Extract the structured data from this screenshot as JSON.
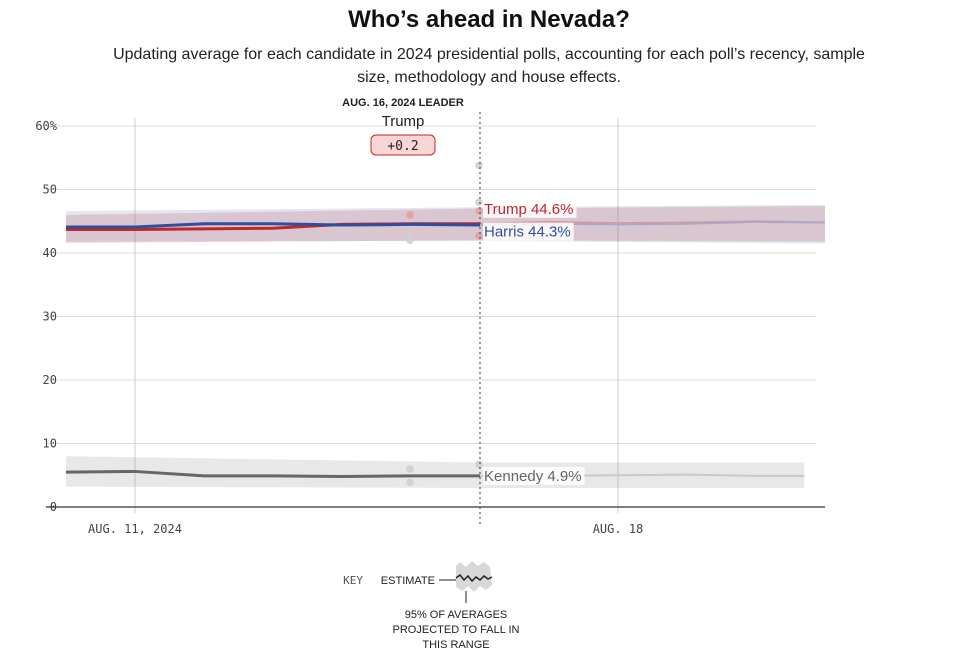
{
  "header": {
    "title": "Who’s ahead in Nevada?",
    "subtitle": "Updating average for each candidate in 2024 presidential polls, accounting for each poll’s recency, sample size, methodology and house effects."
  },
  "leader": {
    "heading": "AUG. 16, 2024 LEADER",
    "name": "Trump",
    "margin": "+0.2"
  },
  "key": {
    "label": "KEY",
    "estimate": "ESTIMATE",
    "range_line1": "95% OF AVERAGES",
    "range_line2": "PROJECTED TO FALL IN",
    "range_line3": "THIS RANGE"
  },
  "chart_data": {
    "type": "line",
    "title": "Who’s ahead in Nevada?",
    "subtitle": "Updating average for each candidate in 2024 presidential polls, accounting for each poll’s recency, sample size, methodology and house effects.",
    "x_range": [
      "2024-08-10",
      "2024-08-21"
    ],
    "ylim": [
      0,
      60
    ],
    "yticks": [
      0,
      10,
      20,
      30,
      40,
      50,
      60
    ],
    "ytick_labels": [
      "0",
      "10",
      "20",
      "30",
      "40",
      "50",
      "60%"
    ],
    "xticks": [
      {
        "date": "2024-08-11",
        "label": "AUG. 11, 2024"
      },
      {
        "date": "2024-08-18",
        "label": "AUG. 18"
      }
    ],
    "grid": true,
    "current_date": "2024-08-16",
    "series": [
      {
        "name": "Trump",
        "color": "#c0272d",
        "end_label": "Trump 44.6%",
        "points": [
          [
            "2024-08-10",
            43.7
          ],
          [
            "2024-08-11",
            43.7
          ],
          [
            "2024-08-12",
            43.8
          ],
          [
            "2024-08-13",
            43.9
          ],
          [
            "2024-08-14",
            44.5
          ],
          [
            "2024-08-15",
            44.6
          ],
          [
            "2024-08-16",
            44.6
          ]
        ],
        "projection": [
          [
            "2024-08-16",
            44.6
          ],
          [
            "2024-08-17",
            44.9
          ],
          [
            "2024-08-18",
            44.7
          ],
          [
            "2024-08-19",
            44.8
          ],
          [
            "2024-08-20",
            45.0
          ],
          [
            "2024-08-21",
            44.8
          ]
        ],
        "band": [
          [
            "2024-08-10",
            41.6,
            46.0
          ],
          [
            "2024-08-16",
            42.0,
            47.0
          ],
          [
            "2024-08-21",
            41.8,
            47.4
          ]
        ]
      },
      {
        "name": "Harris",
        "color": "#2f4f9d",
        "end_label": "Harris 44.3%",
        "points": [
          [
            "2024-08-10",
            44.1
          ],
          [
            "2024-08-11",
            44.1
          ],
          [
            "2024-08-12",
            44.6
          ],
          [
            "2024-08-13",
            44.6
          ],
          [
            "2024-08-14",
            44.4
          ],
          [
            "2024-08-15",
            44.5
          ],
          [
            "2024-08-16",
            44.4
          ]
        ],
        "projection": [
          [
            "2024-08-16",
            44.4
          ],
          [
            "2024-08-17",
            44.6
          ],
          [
            "2024-08-18",
            44.5
          ],
          [
            "2024-08-19",
            44.6
          ],
          [
            "2024-08-20",
            44.9
          ],
          [
            "2024-08-21",
            44.8
          ]
        ],
        "band": [
          [
            "2024-08-10",
            41.8,
            46.6
          ],
          [
            "2024-08-16",
            41.9,
            47.2
          ],
          [
            "2024-08-21",
            41.5,
            47.6
          ]
        ]
      },
      {
        "name": "Kennedy",
        "color": "#666666",
        "end_label": "Kennedy 4.9%",
        "points": [
          [
            "2024-08-10",
            5.5
          ],
          [
            "2024-08-11",
            5.6
          ],
          [
            "2024-08-12",
            4.9
          ],
          [
            "2024-08-13",
            4.9
          ],
          [
            "2024-08-14",
            4.8
          ],
          [
            "2024-08-15",
            4.9
          ],
          [
            "2024-08-16",
            4.9
          ]
        ],
        "projection": [
          [
            "2024-08-16",
            4.9
          ],
          [
            "2024-08-17",
            4.9
          ],
          [
            "2024-08-18",
            5.0
          ],
          [
            "2024-08-19",
            5.1
          ],
          [
            "2024-08-20",
            4.9
          ],
          [
            "2024-08-20.7",
            4.9
          ]
        ],
        "band": [
          [
            "2024-08-10",
            3.2,
            8.0
          ],
          [
            "2024-08-16",
            3.0,
            7.0
          ],
          [
            "2024-08-20.7",
            3.0,
            7.0
          ]
        ]
      }
    ],
    "polls": [
      {
        "date": "2024-08-15",
        "value": 46.0,
        "candidate": "Trump"
      },
      {
        "date": "2024-08-15",
        "value": 43.0,
        "candidate": "Harris"
      },
      {
        "date": "2024-08-15",
        "value": 42.0,
        "candidate": "Harris"
      },
      {
        "date": "2024-08-15",
        "value": 6.0,
        "candidate": "Kennedy"
      },
      {
        "date": "2024-08-15",
        "value": 3.9,
        "candidate": "Kennedy"
      },
      {
        "date": "2024-08-16",
        "value": 53.8,
        "candidate": "Harris"
      },
      {
        "date": "2024-08-16",
        "value": 48.0,
        "candidate": "Harris"
      },
      {
        "date": "2024-08-16",
        "value": 46.6,
        "candidate": "Trump"
      },
      {
        "date": "2024-08-16",
        "value": 42.7,
        "candidate": "Trump"
      },
      {
        "date": "2024-08-16",
        "value": 6.7,
        "candidate": "Kennedy"
      }
    ]
  }
}
